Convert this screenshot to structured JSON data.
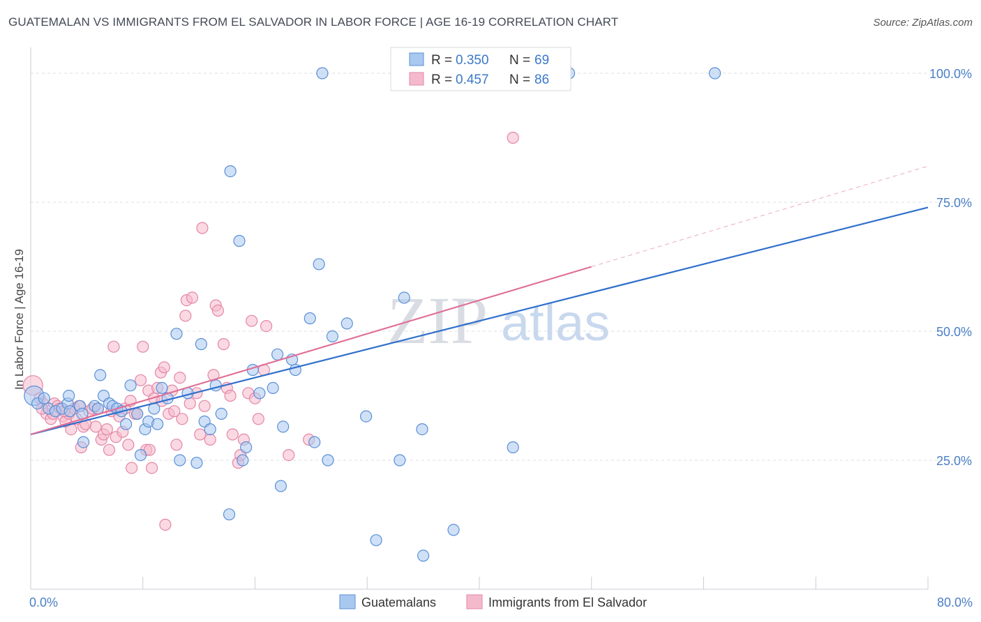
{
  "title": "GUATEMALAN VS IMMIGRANTS FROM EL SALVADOR IN LABOR FORCE | AGE 16-19 CORRELATION CHART",
  "source": "Source: ZipAtlas.com",
  "watermark": {
    "zip": "ZIP",
    "atlas": "atlas"
  },
  "colors": {
    "blue_fill": "#a9c8f0",
    "blue_stroke": "#5a8fd6",
    "blue_line": "#2f6fcc",
    "pink_fill": "#f5b9cc",
    "pink_stroke": "#e486a6",
    "pink_line": "#e07096",
    "grid": "#d8dce2",
    "tick_text": "#4a7fc4"
  },
  "legend_top": {
    "r_label": "R =",
    "n_label": "N =",
    "rows": [
      {
        "series": "Guatemalans",
        "r": "0.350",
        "n": "69"
      },
      {
        "series": "Immigrants from El Salvador",
        "r": "0.457",
        "n": "86"
      }
    ]
  },
  "chart_data": {
    "type": "scatter",
    "xlabel": "",
    "ylabel": "In Labor Force | Age 16-19",
    "xlim": [
      0,
      80
    ],
    "ylim": [
      0,
      105
    ],
    "x_tick_labels": [
      {
        "value": 0,
        "label": "0.0%"
      },
      {
        "value": 80,
        "label": "80.0%"
      }
    ],
    "y_tick_labels": [
      {
        "value": 25,
        "label": "25.0%"
      },
      {
        "value": 50,
        "label": "50.0%"
      },
      {
        "value": 75,
        "label": "75.0%"
      },
      {
        "value": 100,
        "label": "100.0%"
      }
    ],
    "grid": true,
    "legend_position": "bottom",
    "series": [
      {
        "name": "Guatemalans",
        "color": "#a9c8f0",
        "r": 0.35,
        "n": 69,
        "trend": {
          "x": [
            0,
            80
          ],
          "y": [
            30,
            74
          ]
        },
        "points": [
          [
            0.3,
            37.5
          ],
          [
            0.6,
            36
          ],
          [
            1.2,
            37
          ],
          [
            1.6,
            35
          ],
          [
            2.2,
            34.5
          ],
          [
            2.8,
            35
          ],
          [
            3.3,
            36
          ],
          [
            3.5,
            34.5
          ],
          [
            3.4,
            37.5
          ],
          [
            4.4,
            35.5
          ],
          [
            4.6,
            34
          ],
          [
            4.7,
            28.5
          ],
          [
            5.7,
            35.5
          ],
          [
            6.0,
            35
          ],
          [
            6.2,
            41.5
          ],
          [
            6.5,
            37.5
          ],
          [
            7.0,
            36
          ],
          [
            7.3,
            35.5
          ],
          [
            7.7,
            35
          ],
          [
            8.1,
            34.5
          ],
          [
            8.5,
            32
          ],
          [
            8.9,
            39.5
          ],
          [
            9.5,
            34
          ],
          [
            9.8,
            26
          ],
          [
            10.2,
            31
          ],
          [
            10.5,
            32.5
          ],
          [
            11.0,
            35
          ],
          [
            11.3,
            32
          ],
          [
            11.7,
            39
          ],
          [
            12.2,
            37
          ],
          [
            13.0,
            49.5
          ],
          [
            13.3,
            25
          ],
          [
            14.0,
            38
          ],
          [
            14.8,
            24.5
          ],
          [
            15.2,
            47.5
          ],
          [
            15.5,
            32.5
          ],
          [
            16.0,
            31
          ],
          [
            16.5,
            39.5
          ],
          [
            17.0,
            34
          ],
          [
            17.7,
            14.5
          ],
          [
            17.8,
            81
          ],
          [
            18.6,
            67.5
          ],
          [
            18.9,
            25
          ],
          [
            19.2,
            27.5
          ],
          [
            19.8,
            42.5
          ],
          [
            20.4,
            38
          ],
          [
            21.6,
            39
          ],
          [
            22.0,
            45.5
          ],
          [
            22.3,
            20
          ],
          [
            22.5,
            31.5
          ],
          [
            23.3,
            44.5
          ],
          [
            23.6,
            42.5
          ],
          [
            24.9,
            52.5
          ],
          [
            25.3,
            28.5
          ],
          [
            25.7,
            63
          ],
          [
            26.0,
            100
          ],
          [
            26.5,
            25
          ],
          [
            26.9,
            49
          ],
          [
            28.2,
            51.5
          ],
          [
            29.9,
            33.5
          ],
          [
            30.8,
            9.5
          ],
          [
            32.9,
            25
          ],
          [
            33.3,
            56.5
          ],
          [
            35.0,
            6.5
          ],
          [
            34.9,
            31
          ],
          [
            37.7,
            11.5
          ],
          [
            43.0,
            27.5
          ],
          [
            48.0,
            100
          ],
          [
            61.0,
            100
          ]
        ]
      },
      {
        "name": "Immigrants from El Salvador",
        "color": "#f5b9cc",
        "r": 0.457,
        "n": 86,
        "trend": {
          "x": [
            0,
            50
          ],
          "y": [
            30,
            62.5
          ]
        },
        "trend_extension": {
          "x": [
            50,
            80
          ],
          "y": [
            62.5,
            82
          ]
        },
        "points": [
          [
            0.2,
            39.5
          ],
          [
            0.8,
            37
          ],
          [
            1.1,
            36
          ],
          [
            1.4,
            34
          ],
          [
            1.8,
            33
          ],
          [
            2.1,
            36
          ],
          [
            2.4,
            35.5
          ],
          [
            2.6,
            35
          ],
          [
            2.9,
            33.5
          ],
          [
            3.1,
            32.5
          ],
          [
            3.4,
            34
          ],
          [
            3.6,
            31
          ],
          [
            3.9,
            35
          ],
          [
            4.1,
            33
          ],
          [
            4.3,
            35.5
          ],
          [
            4.5,
            27.5
          ],
          [
            4.7,
            31.5
          ],
          [
            4.9,
            32
          ],
          [
            5.2,
            34.5
          ],
          [
            5.5,
            35
          ],
          [
            5.8,
            31.5
          ],
          [
            6.0,
            35
          ],
          [
            6.3,
            29
          ],
          [
            6.5,
            30
          ],
          [
            6.8,
            31
          ],
          [
            7.0,
            27
          ],
          [
            7.2,
            34.5
          ],
          [
            7.4,
            47
          ],
          [
            7.6,
            29.5
          ],
          [
            7.9,
            33.5
          ],
          [
            8.2,
            30.5
          ],
          [
            8.4,
            35
          ],
          [
            8.7,
            28
          ],
          [
            8.9,
            36.5
          ],
          [
            9.0,
            23.5
          ],
          [
            9.3,
            34
          ],
          [
            9.5,
            34
          ],
          [
            9.8,
            40.5
          ],
          [
            10.0,
            47
          ],
          [
            10.3,
            27
          ],
          [
            10.5,
            38.5
          ],
          [
            10.6,
            27
          ],
          [
            10.8,
            23.5
          ],
          [
            11.0,
            37
          ],
          [
            11.3,
            39
          ],
          [
            11.6,
            42
          ],
          [
            11.7,
            36.5
          ],
          [
            11.9,
            43
          ],
          [
            12.0,
            12.5
          ],
          [
            12.3,
            34
          ],
          [
            12.6,
            38.5
          ],
          [
            12.8,
            34.5
          ],
          [
            13.0,
            28
          ],
          [
            13.3,
            41
          ],
          [
            13.5,
            33
          ],
          [
            13.8,
            53
          ],
          [
            13.9,
            56
          ],
          [
            14.2,
            36
          ],
          [
            14.4,
            56.5
          ],
          [
            14.8,
            38
          ],
          [
            15.1,
            30
          ],
          [
            15.3,
            70
          ],
          [
            15.5,
            35.5
          ],
          [
            16.0,
            29
          ],
          [
            16.3,
            41.5
          ],
          [
            16.5,
            55
          ],
          [
            16.7,
            54
          ],
          [
            17.2,
            47.5
          ],
          [
            17.5,
            39
          ],
          [
            17.8,
            37.5
          ],
          [
            18.0,
            30
          ],
          [
            18.5,
            24.5
          ],
          [
            18.7,
            26
          ],
          [
            19.0,
            29
          ],
          [
            19.4,
            38
          ],
          [
            19.7,
            52
          ],
          [
            20.0,
            37
          ],
          [
            20.3,
            33
          ],
          [
            20.8,
            42.5
          ],
          [
            21.0,
            51
          ],
          [
            23.0,
            26
          ],
          [
            24.8,
            29
          ],
          [
            43.0,
            87.5
          ],
          [
            1.0,
            35
          ],
          [
            2.0,
            34
          ],
          [
            3.0,
            34.5
          ]
        ]
      }
    ]
  }
}
